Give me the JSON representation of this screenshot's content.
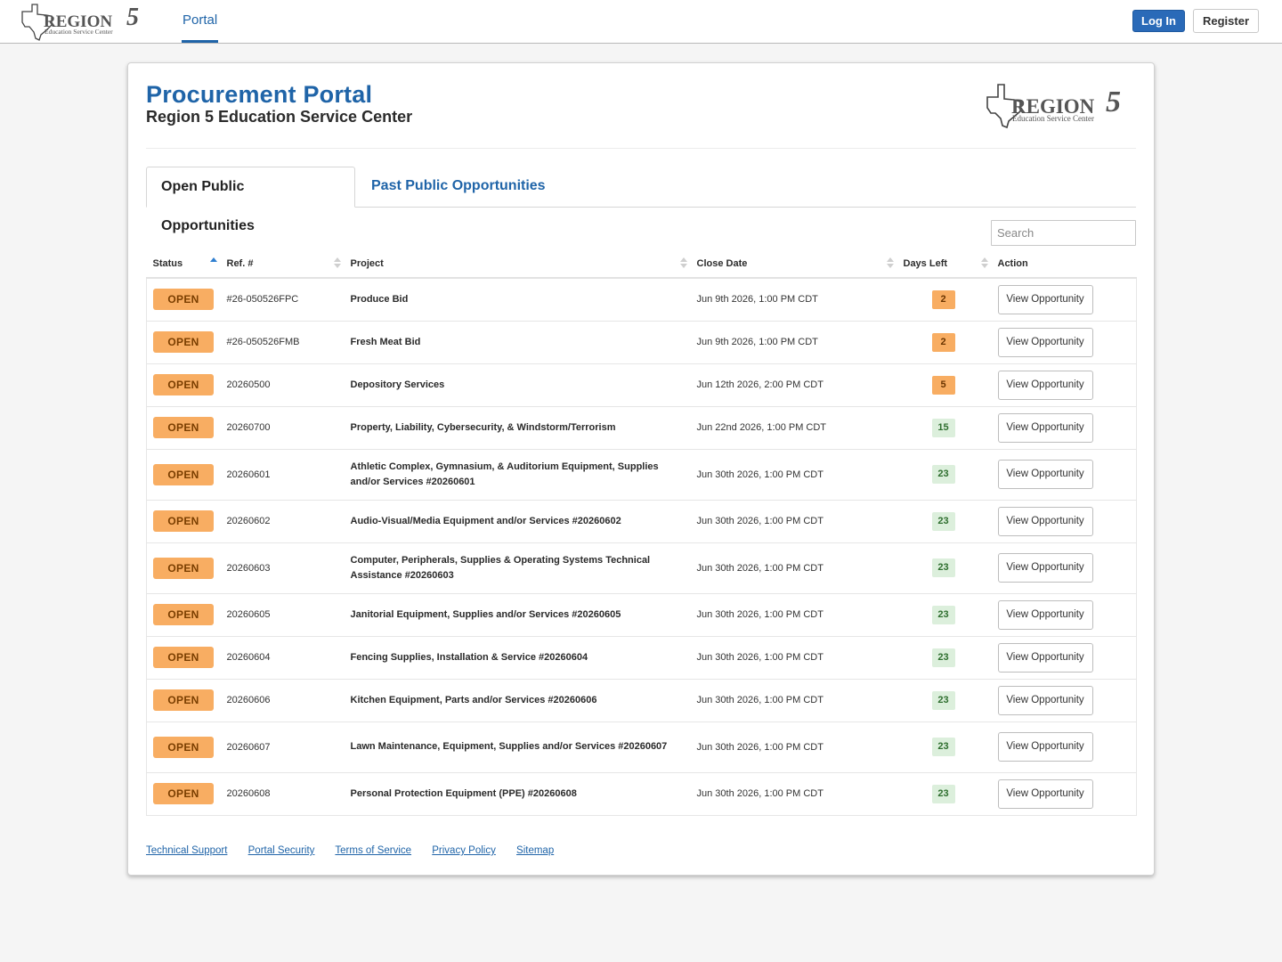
{
  "nav": {
    "logo_text": "REGION 5",
    "logo_subtext": "Education Service Center",
    "portal_label": "Portal",
    "login_label": "Log In",
    "register_label": "Register"
  },
  "header": {
    "title": "Procurement Portal",
    "subtitle": "Region 5 Education Service Center"
  },
  "tabs": [
    {
      "label": "Open Public Opportunities",
      "active": true
    },
    {
      "label": "Past Public Opportunities",
      "active": false
    }
  ],
  "search": {
    "placeholder": "Search"
  },
  "table": {
    "columns": [
      "Status",
      "Ref. #",
      "Project",
      "Close Date",
      "Days Left",
      "Action"
    ],
    "rows": [
      {
        "status": "OPEN",
        "ref": "#26-050526FPC",
        "project": "Produce Bid",
        "close": "Jun 9th 2026, 1:00 PM CDT",
        "days": "2",
        "action": "View Opportunity"
      },
      {
        "status": "OPEN",
        "ref": "#26-050526FMB",
        "project": "Fresh Meat Bid",
        "close": "Jun 9th 2026, 1:00 PM CDT",
        "days": "2",
        "action": "View Opportunity"
      },
      {
        "status": "OPEN",
        "ref": "20260500",
        "project": "Depository Services",
        "close": "Jun 12th 2026, 2:00 PM CDT",
        "days": "5",
        "action": "View Opportunity"
      },
      {
        "status": "OPEN",
        "ref": "20260700",
        "project": "Property, Liability, Cybersecurity, & Windstorm/Terrorism",
        "close": "Jun 22nd 2026, 1:00 PM CDT",
        "days": "15",
        "action": "View Opportunity"
      },
      {
        "status": "OPEN",
        "ref": "20260601",
        "project": "Athletic Complex, Gymnasium, & Auditorium Equipment, Supplies and/or Services #20260601",
        "close": "Jun 30th 2026, 1:00 PM CDT",
        "days": "23",
        "action": "View Opportunity"
      },
      {
        "status": "OPEN",
        "ref": "20260602",
        "project": "Audio-Visual/Media Equipment and/or Services #20260602",
        "close": "Jun 30th 2026, 1:00 PM CDT",
        "days": "23",
        "action": "View Opportunity"
      },
      {
        "status": "OPEN",
        "ref": "20260603",
        "project": "Computer, Peripherals, Supplies & Operating Systems Technical Assistance #20260603",
        "close": "Jun 30th 2026, 1:00 PM CDT",
        "days": "23",
        "action": "View Opportunity"
      },
      {
        "status": "OPEN",
        "ref": "20260605",
        "project": "Janitorial Equipment, Supplies and/or Services #20260605",
        "close": "Jun 30th 2026, 1:00 PM CDT",
        "days": "23",
        "action": "View Opportunity"
      },
      {
        "status": "OPEN",
        "ref": "20260604",
        "project": "Fencing Supplies, Installation & Service #20260604",
        "close": "Jun 30th 2026, 1:00 PM CDT",
        "days": "23",
        "action": "View Opportunity"
      },
      {
        "status": "OPEN",
        "ref": "20260606",
        "project": "Kitchen Equipment, Parts and/or Services #20260606",
        "close": "Jun 30th 2026, 1:00 PM CDT",
        "days": "23",
        "action": "View Opportunity"
      },
      {
        "status": "OPEN",
        "ref": "20260607",
        "project": "Lawn Maintenance, Equipment, Supplies and/or Services #20260607",
        "close": "Jun 30th 2026, 1:00 PM CDT",
        "days": "23",
        "action": "View Opportunity"
      },
      {
        "status": "OPEN",
        "ref": "20260608",
        "project": "Personal Protection Equipment (PPE) #20260608",
        "close": "Jun 30th 2026, 1:00 PM CDT",
        "days": "23",
        "action": "View Opportunity"
      }
    ]
  },
  "footer": {
    "links": [
      "Technical Support",
      "Portal Security",
      "Terms of Service",
      "Privacy Policy",
      "Sitemap"
    ]
  },
  "colors": {
    "brand_blue": "#1f64a8",
    "status_open": "#f8ad62",
    "days_ok": "#dcefdc"
  }
}
